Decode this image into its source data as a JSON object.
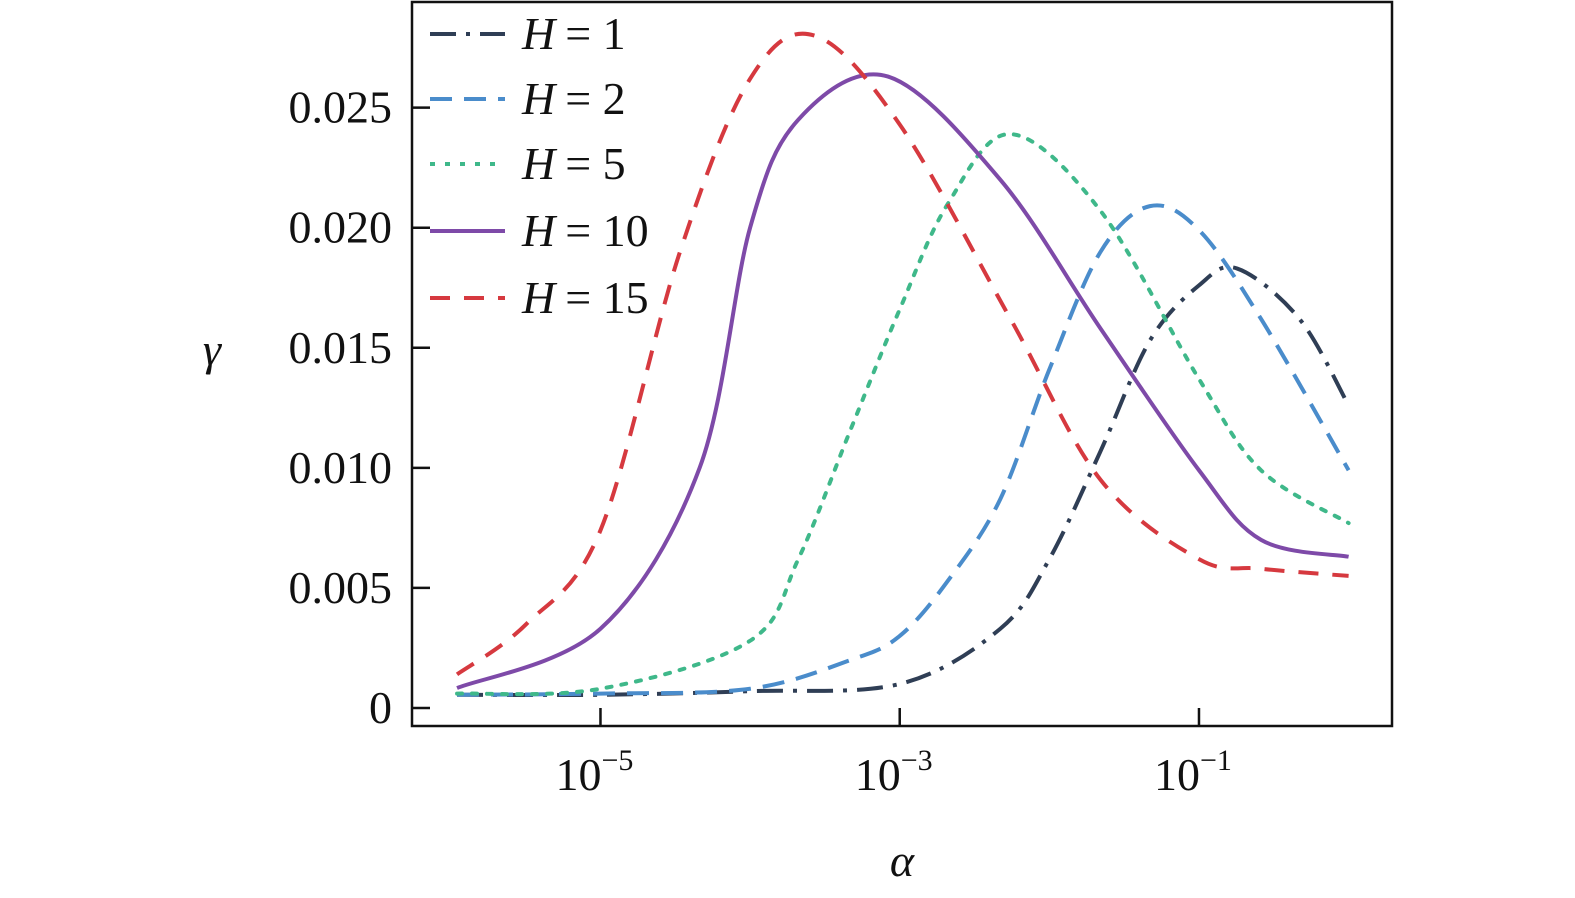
{
  "chart_data": {
    "type": "line",
    "xlabel": "α",
    "ylabel": "γ",
    "xscale": "log",
    "xlim": [
      5.5e-07,
      1.95
    ],
    "ylim": [
      -0.00075,
      0.0294
    ],
    "grid": false,
    "legend_position": "top-left",
    "x_ticks": [
      {
        "value": 1e-05,
        "base": "10",
        "exp": "−5"
      },
      {
        "value": 0.001,
        "base": "10",
        "exp": "−3"
      },
      {
        "value": 0.1,
        "base": "10",
        "exp": "−1"
      }
    ],
    "y_ticks": [
      {
        "value": 0,
        "label": "0"
      },
      {
        "value": 0.005,
        "label": "0.005"
      },
      {
        "value": 0.01,
        "label": "0.010"
      },
      {
        "value": 0.015,
        "label": "0.015"
      },
      {
        "value": 0.02,
        "label": "0.020"
      },
      {
        "value": 0.025,
        "label": "0.025"
      }
    ],
    "series": [
      {
        "name": "H = 1",
        "var": "H",
        "eq": "= 1",
        "color": "#2f3e55",
        "style": "dash-dot",
        "points": [
          [
            1.1e-06,
            0.00055
          ],
          [
            1e-05,
            0.00055
          ],
          [
            0.0001,
            0.0007
          ],
          [
            0.001,
            0.001
          ],
          [
            0.0047,
            0.0033
          ],
          [
            0.01,
            0.0062
          ],
          [
            0.022,
            0.0107
          ],
          [
            0.047,
            0.0153
          ],
          [
            0.1,
            0.0176
          ],
          [
            0.18,
            0.0183
          ],
          [
            0.47,
            0.0162
          ],
          [
            1,
            0.0126
          ]
        ]
      },
      {
        "name": "H = 2",
        "var": "H",
        "eq": "= 2",
        "color": "#4a8ccb",
        "style": "dashed",
        "points": [
          [
            1.1e-06,
            0.00055
          ],
          [
            1e-05,
            0.0006
          ],
          [
            0.0001,
            0.0008
          ],
          [
            0.00047,
            0.002
          ],
          [
            0.001,
            0.003
          ],
          [
            0.0021,
            0.0053
          ],
          [
            0.0047,
            0.0087
          ],
          [
            0.01,
            0.0141
          ],
          [
            0.022,
            0.019
          ],
          [
            0.047,
            0.0209
          ],
          [
            0.1,
            0.0199
          ],
          [
            0.26,
            0.0162
          ],
          [
            1,
            0.0099
          ]
        ]
      },
      {
        "name": "H = 5",
        "var": "H",
        "eq": "= 5",
        "color": "#3fb88a",
        "style": "dotted",
        "points": [
          [
            1.1e-06,
            0.0006
          ],
          [
            1e-05,
            0.0008
          ],
          [
            0.0001,
            0.0028
          ],
          [
            0.00021,
            0.0062
          ],
          [
            0.00047,
            0.0116
          ],
          [
            0.001,
            0.0166
          ],
          [
            0.0021,
            0.021
          ],
          [
            0.0055,
            0.0239
          ],
          [
            0.022,
            0.0207
          ],
          [
            0.1,
            0.0137
          ],
          [
            0.26,
            0.0099
          ],
          [
            1,
            0.0077
          ]
        ]
      },
      {
        "name": "H = 10",
        "var": "H",
        "eq": "= 10",
        "color": "#7e4aa8",
        "style": "solid",
        "points": [
          [
            1.1e-06,
            0.00083
          ],
          [
            1e-05,
            0.0033
          ],
          [
            4.6e-05,
            0.01
          ],
          [
            0.0001,
            0.02
          ],
          [
            0.00021,
            0.0245
          ],
          [
            0.00083,
            0.0263
          ],
          [
            0.0047,
            0.022
          ],
          [
            0.022,
            0.0158
          ],
          [
            0.1,
            0.0099
          ],
          [
            0.26,
            0.007
          ],
          [
            1,
            0.0063
          ]
        ]
      },
      {
        "name": "H = 15",
        "var": "H",
        "eq": "= 15",
        "color": "#d6393f",
        "style": "dashed-short",
        "points": [
          [
            1.1e-06,
            0.0014
          ],
          [
            3.2e-06,
            0.0035
          ],
          [
            1e-05,
            0.0074
          ],
          [
            3.4e-05,
            0.019
          ],
          [
            0.0001,
            0.0262
          ],
          [
            0.00027,
            0.028
          ],
          [
            0.001,
            0.0243
          ],
          [
            0.0055,
            0.0162
          ],
          [
            0.022,
            0.0095
          ],
          [
            0.1,
            0.0062
          ],
          [
            0.26,
            0.0058
          ],
          [
            1,
            0.0055
          ]
        ]
      }
    ]
  }
}
